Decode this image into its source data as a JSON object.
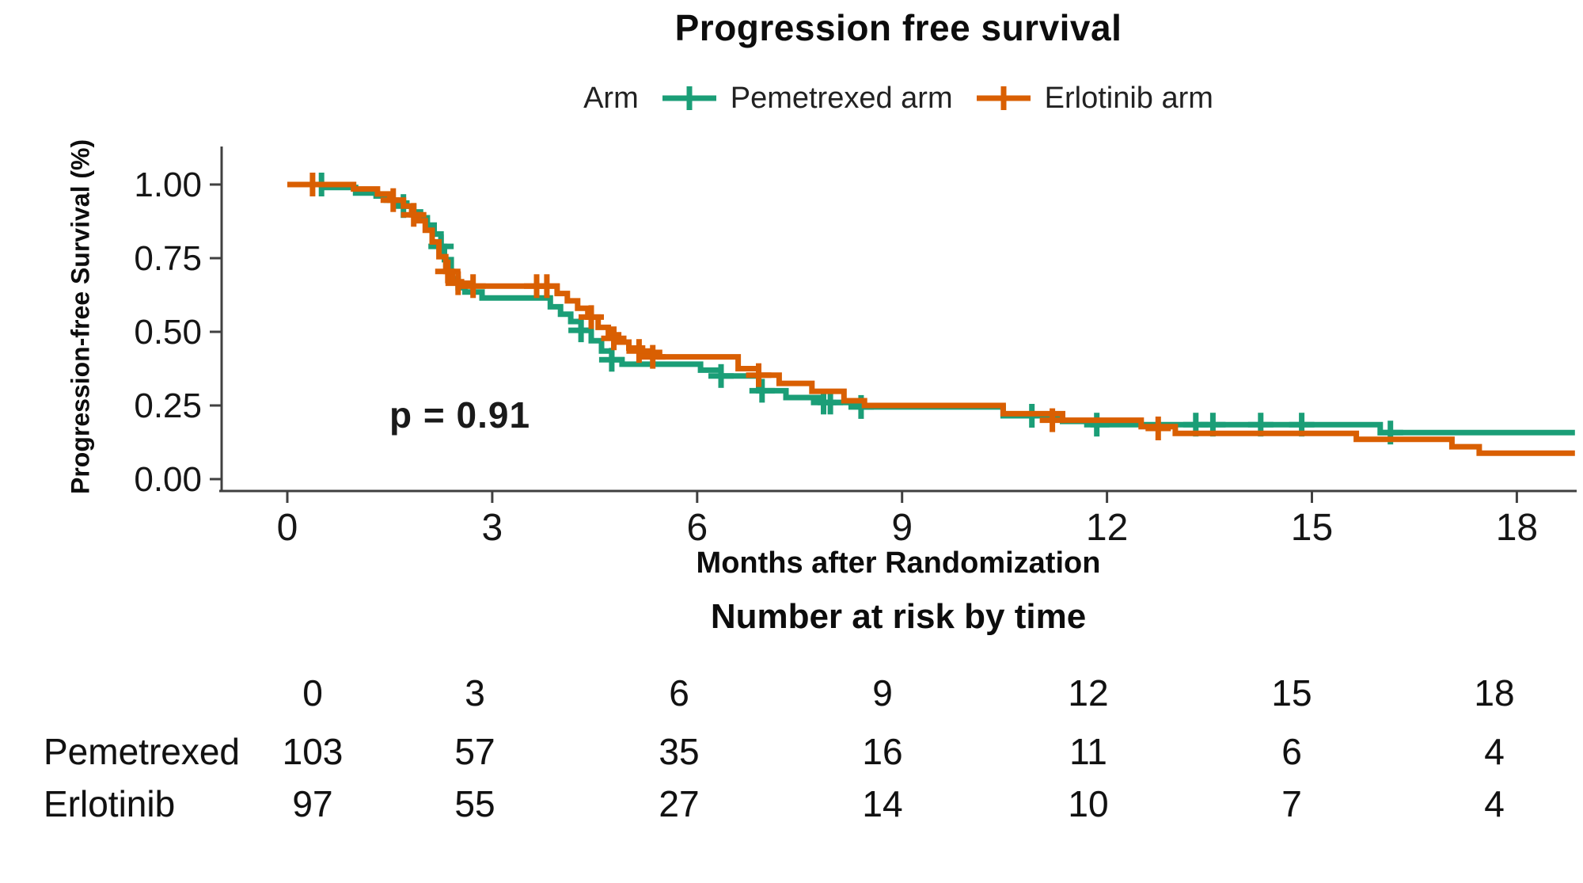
{
  "title": "Progression free survival",
  "legend": {
    "label": "Arm"
  },
  "annotation": {
    "p_value": "p = 0.91"
  },
  "colors": {
    "pemetrexed": "#1b9e77",
    "erlotinib": "#d95f02",
    "axis": "#404040",
    "text": "#161616"
  },
  "chart_data": {
    "type": "line",
    "subtype": "kaplan-meier-step",
    "title": "Progression free survival",
    "xlabel": "Months after Randomization",
    "ylabel": "Progression-free Survival (%)",
    "xlim": [
      0,
      18.9
    ],
    "ylim": [
      0,
      1.0
    ],
    "x_ticks": [
      "0",
      "3",
      "6",
      "9",
      "12",
      "15",
      "18"
    ],
    "y_ticks": [
      "1.00",
      "0.75",
      "0.50",
      "0.25",
      "0.00"
    ],
    "grid": "off",
    "legend_position": "top",
    "p_value": "p = 0.91",
    "series": [
      {
        "name": "Pemetrexed arm",
        "color": "#1b9e77",
        "end_time": 18.85,
        "steps": [
          [
            0,
            1.0
          ],
          [
            0.55,
            0.99
          ],
          [
            1.0,
            0.971
          ],
          [
            1.3,
            0.961
          ],
          [
            1.45,
            0.947
          ],
          [
            1.6,
            0.937
          ],
          [
            1.75,
            0.927
          ],
          [
            1.85,
            0.907
          ],
          [
            1.95,
            0.887
          ],
          [
            2.05,
            0.862
          ],
          [
            2.15,
            0.832
          ],
          [
            2.25,
            0.79
          ],
          [
            2.3,
            0.745
          ],
          [
            2.4,
            0.68
          ],
          [
            2.5,
            0.65
          ],
          [
            2.6,
            0.635
          ],
          [
            2.85,
            0.615
          ],
          [
            3.85,
            0.585
          ],
          [
            4.0,
            0.56
          ],
          [
            4.15,
            0.535
          ],
          [
            4.3,
            0.505
          ],
          [
            4.45,
            0.47
          ],
          [
            4.6,
            0.435
          ],
          [
            4.75,
            0.405
          ],
          [
            4.9,
            0.39
          ],
          [
            6.05,
            0.37
          ],
          [
            6.35,
            0.35
          ],
          [
            6.9,
            0.3
          ],
          [
            7.3,
            0.277
          ],
          [
            7.85,
            0.26
          ],
          [
            8.4,
            0.245
          ],
          [
            10.48,
            0.215
          ],
          [
            11.35,
            0.196
          ],
          [
            11.8,
            0.185
          ],
          [
            16.0,
            0.158
          ]
        ],
        "censor_marks": [
          [
            0.5,
            1.0
          ],
          [
            1.7,
            0.927
          ],
          [
            2.25,
            0.79
          ],
          [
            4.3,
            0.505
          ],
          [
            4.75,
            0.405
          ],
          [
            6.35,
            0.35
          ],
          [
            6.95,
            0.3
          ],
          [
            7.85,
            0.26
          ],
          [
            7.95,
            0.26
          ],
          [
            8.4,
            0.245
          ],
          [
            10.9,
            0.215
          ],
          [
            11.85,
            0.185
          ],
          [
            13.3,
            0.185
          ],
          [
            13.55,
            0.185
          ],
          [
            14.25,
            0.185
          ],
          [
            14.85,
            0.185
          ],
          [
            16.15,
            0.158
          ]
        ]
      },
      {
        "name": "Erlotinib arm",
        "color": "#d95f02",
        "end_time": 18.85,
        "steps": [
          [
            0,
            1.0
          ],
          [
            0.97,
            0.985
          ],
          [
            1.32,
            0.968
          ],
          [
            1.5,
            0.947
          ],
          [
            1.7,
            0.927
          ],
          [
            1.82,
            0.897
          ],
          [
            1.92,
            0.877
          ],
          [
            2.02,
            0.845
          ],
          [
            2.12,
            0.805
          ],
          [
            2.22,
            0.755
          ],
          [
            2.32,
            0.705
          ],
          [
            2.42,
            0.67
          ],
          [
            2.55,
            0.655
          ],
          [
            3.95,
            0.63
          ],
          [
            4.1,
            0.605
          ],
          [
            4.25,
            0.58
          ],
          [
            4.4,
            0.55
          ],
          [
            4.55,
            0.515
          ],
          [
            4.7,
            0.49
          ],
          [
            4.85,
            0.465
          ],
          [
            5.0,
            0.445
          ],
          [
            5.2,
            0.43
          ],
          [
            5.45,
            0.415
          ],
          [
            6.6,
            0.375
          ],
          [
            6.9,
            0.353
          ],
          [
            7.2,
            0.325
          ],
          [
            7.68,
            0.298
          ],
          [
            8.15,
            0.266
          ],
          [
            8.45,
            0.25
          ],
          [
            10.48,
            0.222
          ],
          [
            11.35,
            0.2
          ],
          [
            12.5,
            0.178
          ],
          [
            13.0,
            0.155
          ],
          [
            15.65,
            0.135
          ],
          [
            17.05,
            0.11
          ],
          [
            17.45,
            0.088
          ]
        ],
        "censor_marks": [
          [
            0.37,
            1.0
          ],
          [
            1.55,
            0.947
          ],
          [
            1.85,
            0.897
          ],
          [
            2.35,
            0.705
          ],
          [
            2.5,
            0.665
          ],
          [
            2.72,
            0.655
          ],
          [
            3.65,
            0.655
          ],
          [
            3.8,
            0.655
          ],
          [
            4.45,
            0.55
          ],
          [
            4.78,
            0.478
          ],
          [
            5.15,
            0.435
          ],
          [
            5.35,
            0.415
          ],
          [
            6.9,
            0.353
          ],
          [
            11.2,
            0.2
          ],
          [
            12.75,
            0.172
          ]
        ]
      }
    ]
  },
  "risk_table": {
    "title": "Number at risk by time",
    "time_points": [
      "0",
      "3",
      "6",
      "9",
      "12",
      "15",
      "18"
    ],
    "rows": [
      {
        "label": "Pemetrexed",
        "values": [
          "103",
          "57",
          "35",
          "16",
          "11",
          "6",
          "4"
        ]
      },
      {
        "label": "Erlotinib",
        "values": [
          "97",
          "55",
          "27",
          "14",
          "10",
          "7",
          "4"
        ]
      }
    ]
  }
}
